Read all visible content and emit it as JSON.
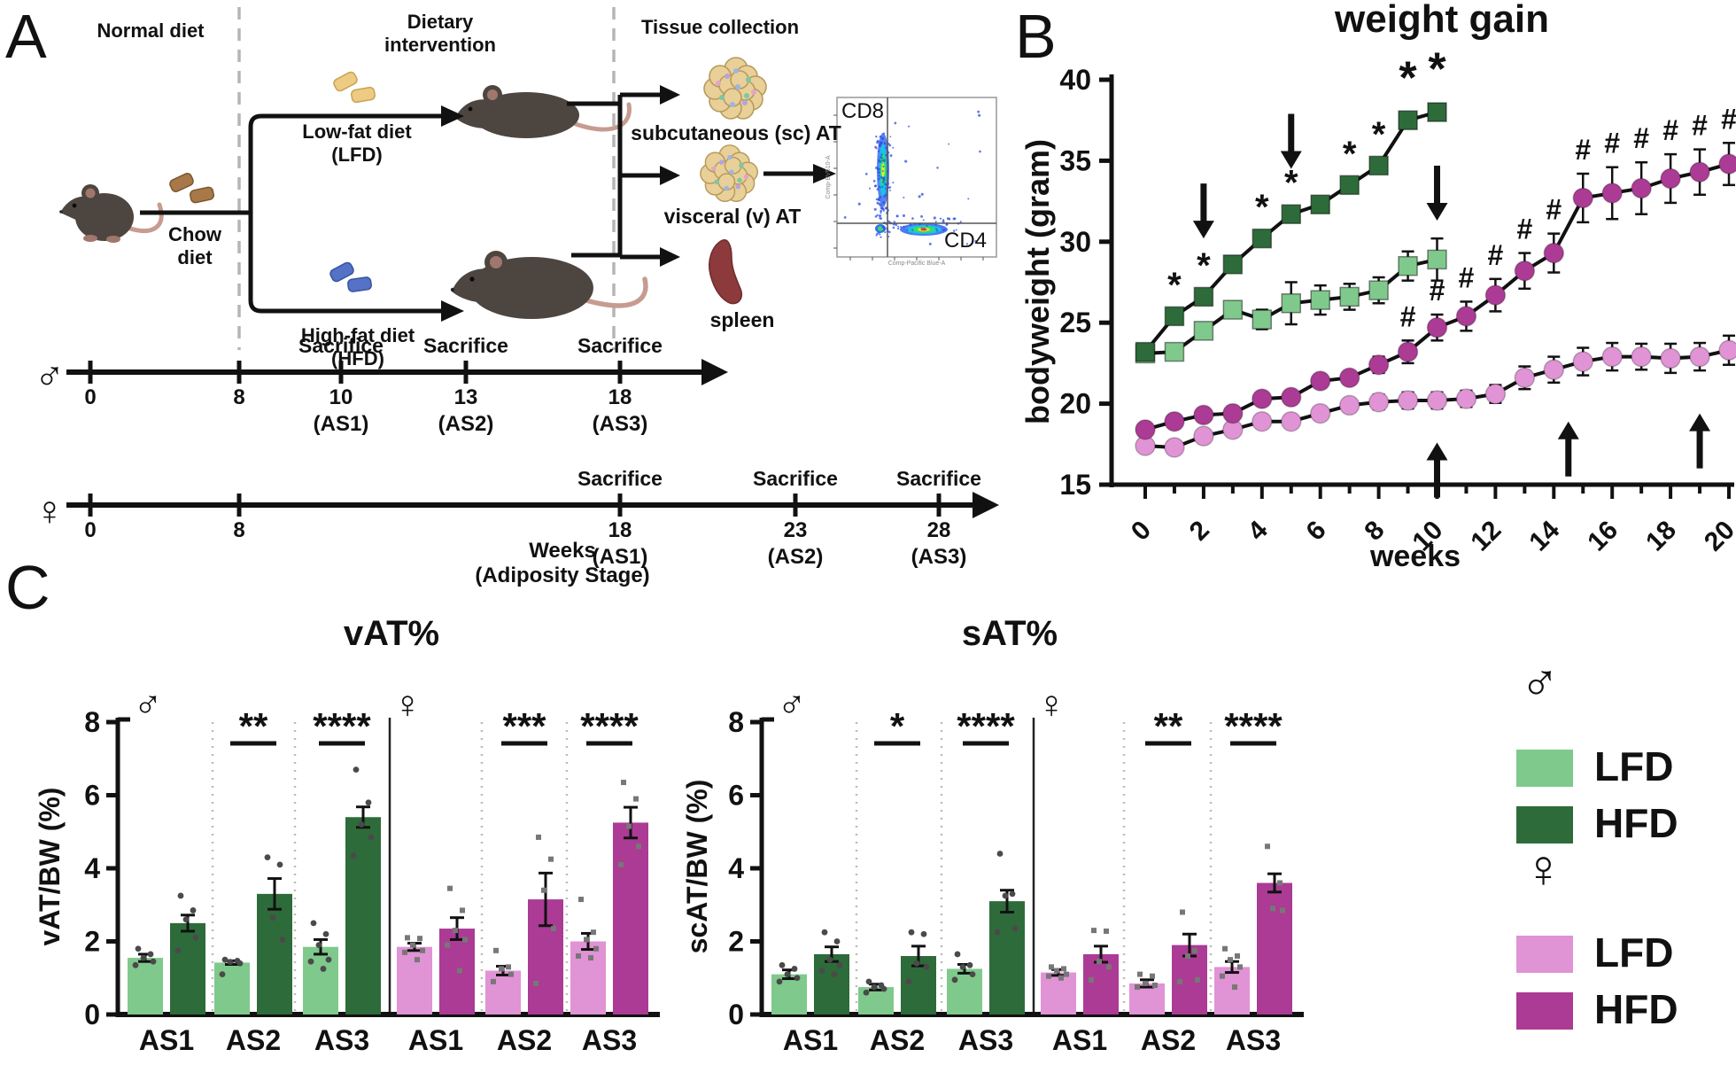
{
  "colors": {
    "lfd_male": "#7fc98c",
    "hfd_male": "#2e6b3a",
    "lfd_female": "#e093d5",
    "hfd_female": "#ab3b94",
    "line": "#111111",
    "dash": "#b5b5b5"
  },
  "panelA": {
    "label": "A",
    "headers": {
      "normal_diet": "Normal diet",
      "dietary_intervention": "Dietary\nintervention",
      "tissue_collection": "Tissue collection"
    },
    "chow": "Chow\ndiet",
    "lfd": "Low-fat diet\n(LFD)",
    "hfd": "High-fat diet\n(HFD)",
    "tissues": {
      "sc": "subcutaneous (sc) AT",
      "v": "visceral (v) AT",
      "spleen": "spleen"
    },
    "flow": {
      "y_marker": "CD8",
      "x_marker": "CD4",
      "y_axis": "Comp-BV510-A",
      "x_axis": "Comp-Pacific Blue-A"
    },
    "timeline_caption": "Weeks\n(Adiposity Stage)",
    "timelines": {
      "male": {
        "symbol": "♂",
        "ticks": [
          {
            "label": "0"
          },
          {
            "label": "8"
          },
          {
            "label": "10",
            "stage": "(AS1)",
            "sacrifice": "Sacrifice"
          },
          {
            "label": "13",
            "stage": "(AS2)",
            "sacrifice": "Sacrifice"
          },
          {
            "label": "18",
            "stage": "(AS3)",
            "sacrifice": "Sacrifice"
          }
        ]
      },
      "female": {
        "symbol": "♀",
        "ticks": [
          {
            "label": "0"
          },
          {
            "label": "8"
          },
          {
            "label": "18",
            "stage": "(AS1)",
            "sacrifice": "Sacrifice"
          },
          {
            "label": "23",
            "stage": "(AS2)",
            "sacrifice": "Sacrifice"
          },
          {
            "label": "28",
            "stage": "(AS3)",
            "sacrifice": "Sacrifice"
          }
        ]
      }
    }
  },
  "panelB": {
    "label": "B"
  },
  "panelC": {
    "label": "C"
  },
  "legend": {
    "male_symbol": "♂",
    "female_symbol": "♀",
    "entries": [
      {
        "label": "LFD",
        "color_key": "lfd_male"
      },
      {
        "label": "HFD",
        "color_key": "hfd_male"
      },
      {
        "label": "LFD",
        "color_key": "lfd_female"
      },
      {
        "label": "HFD",
        "color_key": "hfd_female"
      }
    ]
  },
  "chart_data": [
    {
      "type": "line",
      "title": "weight gain",
      "xlabel": "weeks",
      "ylabel": "bodyweight (gram)",
      "ylim": [
        15,
        40
      ],
      "yticks": [
        15,
        20,
        25,
        30,
        35,
        40
      ],
      "xticks": [
        0,
        2,
        4,
        6,
        8,
        10,
        12,
        14,
        16,
        18,
        20
      ],
      "minor_x_step": 1,
      "grid": false,
      "legend_position": "none",
      "series": [
        {
          "name": "male LFD",
          "marker": "square",
          "color_key": "lfd_male",
          "x": [
            0,
            1,
            2,
            3,
            4,
            5,
            6,
            7,
            8,
            9,
            10
          ],
          "values": [
            23.1,
            23.2,
            24.5,
            25.8,
            25.2,
            26.2,
            26.4,
            26.6,
            27.0,
            28.5,
            28.9
          ],
          "err": [
            0.3,
            0.25,
            0.3,
            0.5,
            0.6,
            1.3,
            0.9,
            0.8,
            0.8,
            0.9,
            1.3
          ]
        },
        {
          "name": "male HFD",
          "marker": "square",
          "color_key": "hfd_male",
          "x": [
            0,
            1,
            2,
            3,
            4,
            5,
            6,
            7,
            8,
            9,
            10
          ],
          "values": [
            23.2,
            25.4,
            26.6,
            28.6,
            30.2,
            31.7,
            32.3,
            33.5,
            34.7,
            37.5,
            38.0
          ],
          "err": [
            0,
            0,
            0,
            0,
            0.35,
            0.4,
            0.35,
            0.3,
            0.3,
            0.45,
            0.5
          ]
        },
        {
          "name": "female LFD",
          "marker": "circle",
          "color_key": "lfd_female",
          "x": [
            0,
            1,
            2,
            3,
            4,
            5,
            6,
            7,
            8,
            9,
            10,
            11,
            12,
            13,
            14,
            15,
            16,
            17,
            18,
            19,
            20
          ],
          "values": [
            17.4,
            17.3,
            18.0,
            18.4,
            18.9,
            18.9,
            19.4,
            19.9,
            20.1,
            20.2,
            20.2,
            20.3,
            20.6,
            21.6,
            22.1,
            22.6,
            22.9,
            22.9,
            22.8,
            22.9,
            23.3
          ],
          "err": [
            0.25,
            0.2,
            0.25,
            0.3,
            0.3,
            0.35,
            0.35,
            0.4,
            0.45,
            0.5,
            0.5,
            0.5,
            0.55,
            0.7,
            0.8,
            0.85,
            0.85,
            0.8,
            0.9,
            0.85,
            0.9
          ]
        },
        {
          "name": "female HFD",
          "marker": "circle",
          "color_key": "hfd_female",
          "x": [
            0,
            1,
            2,
            3,
            4,
            5,
            6,
            7,
            8,
            9,
            10,
            11,
            12,
            13,
            14,
            15,
            16,
            17,
            18,
            19,
            20
          ],
          "values": [
            18.4,
            18.9,
            19.3,
            19.4,
            20.3,
            20.4,
            21.4,
            21.6,
            22.4,
            23.2,
            24.7,
            25.4,
            26.7,
            28.2,
            29.3,
            32.7,
            33.0,
            33.3,
            33.9,
            34.3,
            34.8
          ],
          "err": [
            0.3,
            0.25,
            0.3,
            0.3,
            0.35,
            0.35,
            0.4,
            0.4,
            0.5,
            0.7,
            0.8,
            0.9,
            1.0,
            1.1,
            1.2,
            1.5,
            1.6,
            1.6,
            1.5,
            1.4,
            1.3
          ]
        }
      ],
      "annotations": {
        "single_asterisk": {
          "symbol": "*",
          "series": "male HFD",
          "weeks": [
            1,
            2,
            4,
            5,
            7,
            8
          ]
        },
        "double_asterisk": {
          "symbol": "*",
          "series": "male HFD",
          "weeks": [
            9,
            10
          ]
        },
        "hash": {
          "symbol": "#",
          "series": "female HFD",
          "weeks": [
            9,
            10,
            11,
            12,
            13,
            14,
            15,
            16,
            17,
            18,
            19,
            20
          ]
        },
        "down_arrows": [
          {
            "week": 2,
            "value": 30.2
          },
          {
            "week": 5,
            "value": 34.5
          },
          {
            "week": 10,
            "value": 31.3
          }
        ],
        "up_arrows": [
          {
            "week": 10,
            "value": 17.6
          },
          {
            "week": 14.5,
            "value": 18.9
          },
          {
            "week": 19,
            "value": 19.4
          }
        ]
      }
    },
    {
      "type": "bar",
      "title": "vAT%",
      "ylabel": "vAT/BW (%)",
      "ylim": [
        0,
        8
      ],
      "yticks": [
        0,
        2,
        4,
        6,
        8
      ],
      "groups": [
        {
          "sex": "male",
          "symbol": "♂",
          "clusters": [
            {
              "label": "AS1",
              "sig": null,
              "lfd": {
                "value": 1.55,
                "err": 0.1,
                "dots": [
                  1.8,
                  1.65,
                  1.55,
                  1.45,
                  1.35
                ]
              },
              "hfd": {
                "value": 2.5,
                "err": 0.22,
                "dots": [
                  3.25,
                  2.85,
                  2.6,
                  2.1,
                  1.75
                ]
              }
            },
            {
              "label": "AS2",
              "sig": "**",
              "lfd": {
                "value": 1.42,
                "err": 0.05,
                "dots": [
                  1.5,
                  1.47,
                  1.44,
                  1.4,
                  1.1
                ]
              },
              "hfd": {
                "value": 3.3,
                "err": 0.42,
                "dots": [
                  4.3,
                  4.1,
                  2.65,
                  2.05
                ]
              }
            },
            {
              "label": "AS3",
              "sig": "****",
              "lfd": {
                "value": 1.85,
                "err": 0.2,
                "dots": [
                  2.5,
                  2.2,
                  1.9,
                  1.5,
                  1.45,
                  1.25
                ]
              },
              "hfd": {
                "value": 5.4,
                "err": 0.28,
                "dots": [
                  6.7,
                  5.8,
                  5.2,
                  4.85,
                  4.35
                ]
              }
            }
          ]
        },
        {
          "sex": "female",
          "symbol": "♀",
          "clusters": [
            {
              "label": "AS1",
              "sig": null,
              "lfd": {
                "value": 1.85,
                "err": 0.1,
                "dots": [
                  2.1,
                  2.08,
                  1.9,
                  1.75,
                  1.7,
                  1.5
                ]
              },
              "hfd": {
                "value": 2.35,
                "err": 0.3,
                "dots": [
                  3.45,
                  2.85,
                  2.3,
                  2.05,
                  1.9,
                  1.2
                ]
              }
            },
            {
              "label": "AS2",
              "sig": "***",
              "lfd": {
                "value": 1.2,
                "err": 0.12,
                "dots": [
                  1.75,
                  1.3,
                  1.25,
                  1.1,
                  0.9
                ]
              },
              "hfd": {
                "value": 3.15,
                "err": 0.72,
                "dots": [
                  4.85,
                  4.25,
                  3.4,
                  2.35,
                  0.85
                ]
              }
            },
            {
              "label": "AS3",
              "sig": "****",
              "lfd": {
                "value": 2.0,
                "err": 0.22,
                "dots": [
                  3.15,
                  2.25,
                  2.05,
                  1.8,
                  1.6,
                  1.55
                ]
              },
              "hfd": {
                "value": 5.25,
                "err": 0.42,
                "dots": [
                  6.35,
                  5.9,
                  5.15,
                  4.6,
                  4.1
                ]
              }
            }
          ]
        }
      ]
    },
    {
      "type": "bar",
      "title": "sAT%",
      "ylabel": "scAT/BW (%)",
      "ylim": [
        0,
        8
      ],
      "yticks": [
        0,
        2,
        4,
        6,
        8
      ],
      "groups": [
        {
          "sex": "male",
          "symbol": "♂",
          "clusters": [
            {
              "label": "AS1",
              "sig": null,
              "lfd": {
                "value": 1.1,
                "err": 0.12,
                "dots": [
                  1.35,
                  1.25,
                  1.1,
                  1.0,
                  0.9
                ]
              },
              "hfd": {
                "value": 1.65,
                "err": 0.2,
                "dots": [
                  2.25,
                  2.0,
                  1.5,
                  1.35,
                  1.2,
                  1.1
                ]
              }
            },
            {
              "label": "AS2",
              "sig": "*",
              "lfd": {
                "value": 0.75,
                "err": 0.08,
                "dots": [
                  0.9,
                  0.8,
                  0.75,
                  0.7,
                  0.6
                ]
              },
              "hfd": {
                "value": 1.6,
                "err": 0.27,
                "dots": [
                  2.25,
                  2.2,
                  1.4,
                  1.3,
                  0.9
                ]
              }
            },
            {
              "label": "AS3",
              "sig": "****",
              "lfd": {
                "value": 1.25,
                "err": 0.12,
                "dots": [
                  1.65,
                  1.35,
                  1.3,
                  1.1,
                  0.95
                ]
              },
              "hfd": {
                "value": 3.1,
                "err": 0.3,
                "dots": [
                  4.4,
                  3.3,
                  3.25,
                  2.35,
                  2.25
                ]
              }
            }
          ]
        },
        {
          "sex": "female",
          "symbol": "♀",
          "clusters": [
            {
              "label": "AS1",
              "sig": null,
              "lfd": {
                "value": 1.15,
                "err": 0.08,
                "dots": [
                  1.3,
                  1.25,
                  1.2,
                  1.1,
                  1.05,
                  1.0
                ]
              },
              "hfd": {
                "value": 1.65,
                "err": 0.22,
                "dots": [
                  2.3,
                  2.28,
                  1.45,
                  1.3,
                  0.95
                ]
              }
            },
            {
              "label": "AS2",
              "sig": "**",
              "lfd": {
                "value": 0.85,
                "err": 0.1,
                "dots": [
                  1.1,
                  1.05,
                  0.85,
                  0.8,
                  0.75
                ]
              },
              "hfd": {
                "value": 1.9,
                "err": 0.3,
                "dots": [
                  2.8,
                  1.75,
                  1.6,
                  0.95,
                  0.9
                ]
              }
            },
            {
              "label": "AS3",
              "sig": "****",
              "lfd": {
                "value": 1.3,
                "err": 0.15,
                "dots": [
                  1.8,
                  1.6,
                  1.5,
                  1.3,
                  1.05,
                  0.75
                ]
              },
              "hfd": {
                "value": 3.6,
                "err": 0.25,
                "dots": [
                  4.6,
                  3.6,
                  2.9,
                  2.85
                ]
              }
            }
          ]
        }
      ]
    }
  ]
}
